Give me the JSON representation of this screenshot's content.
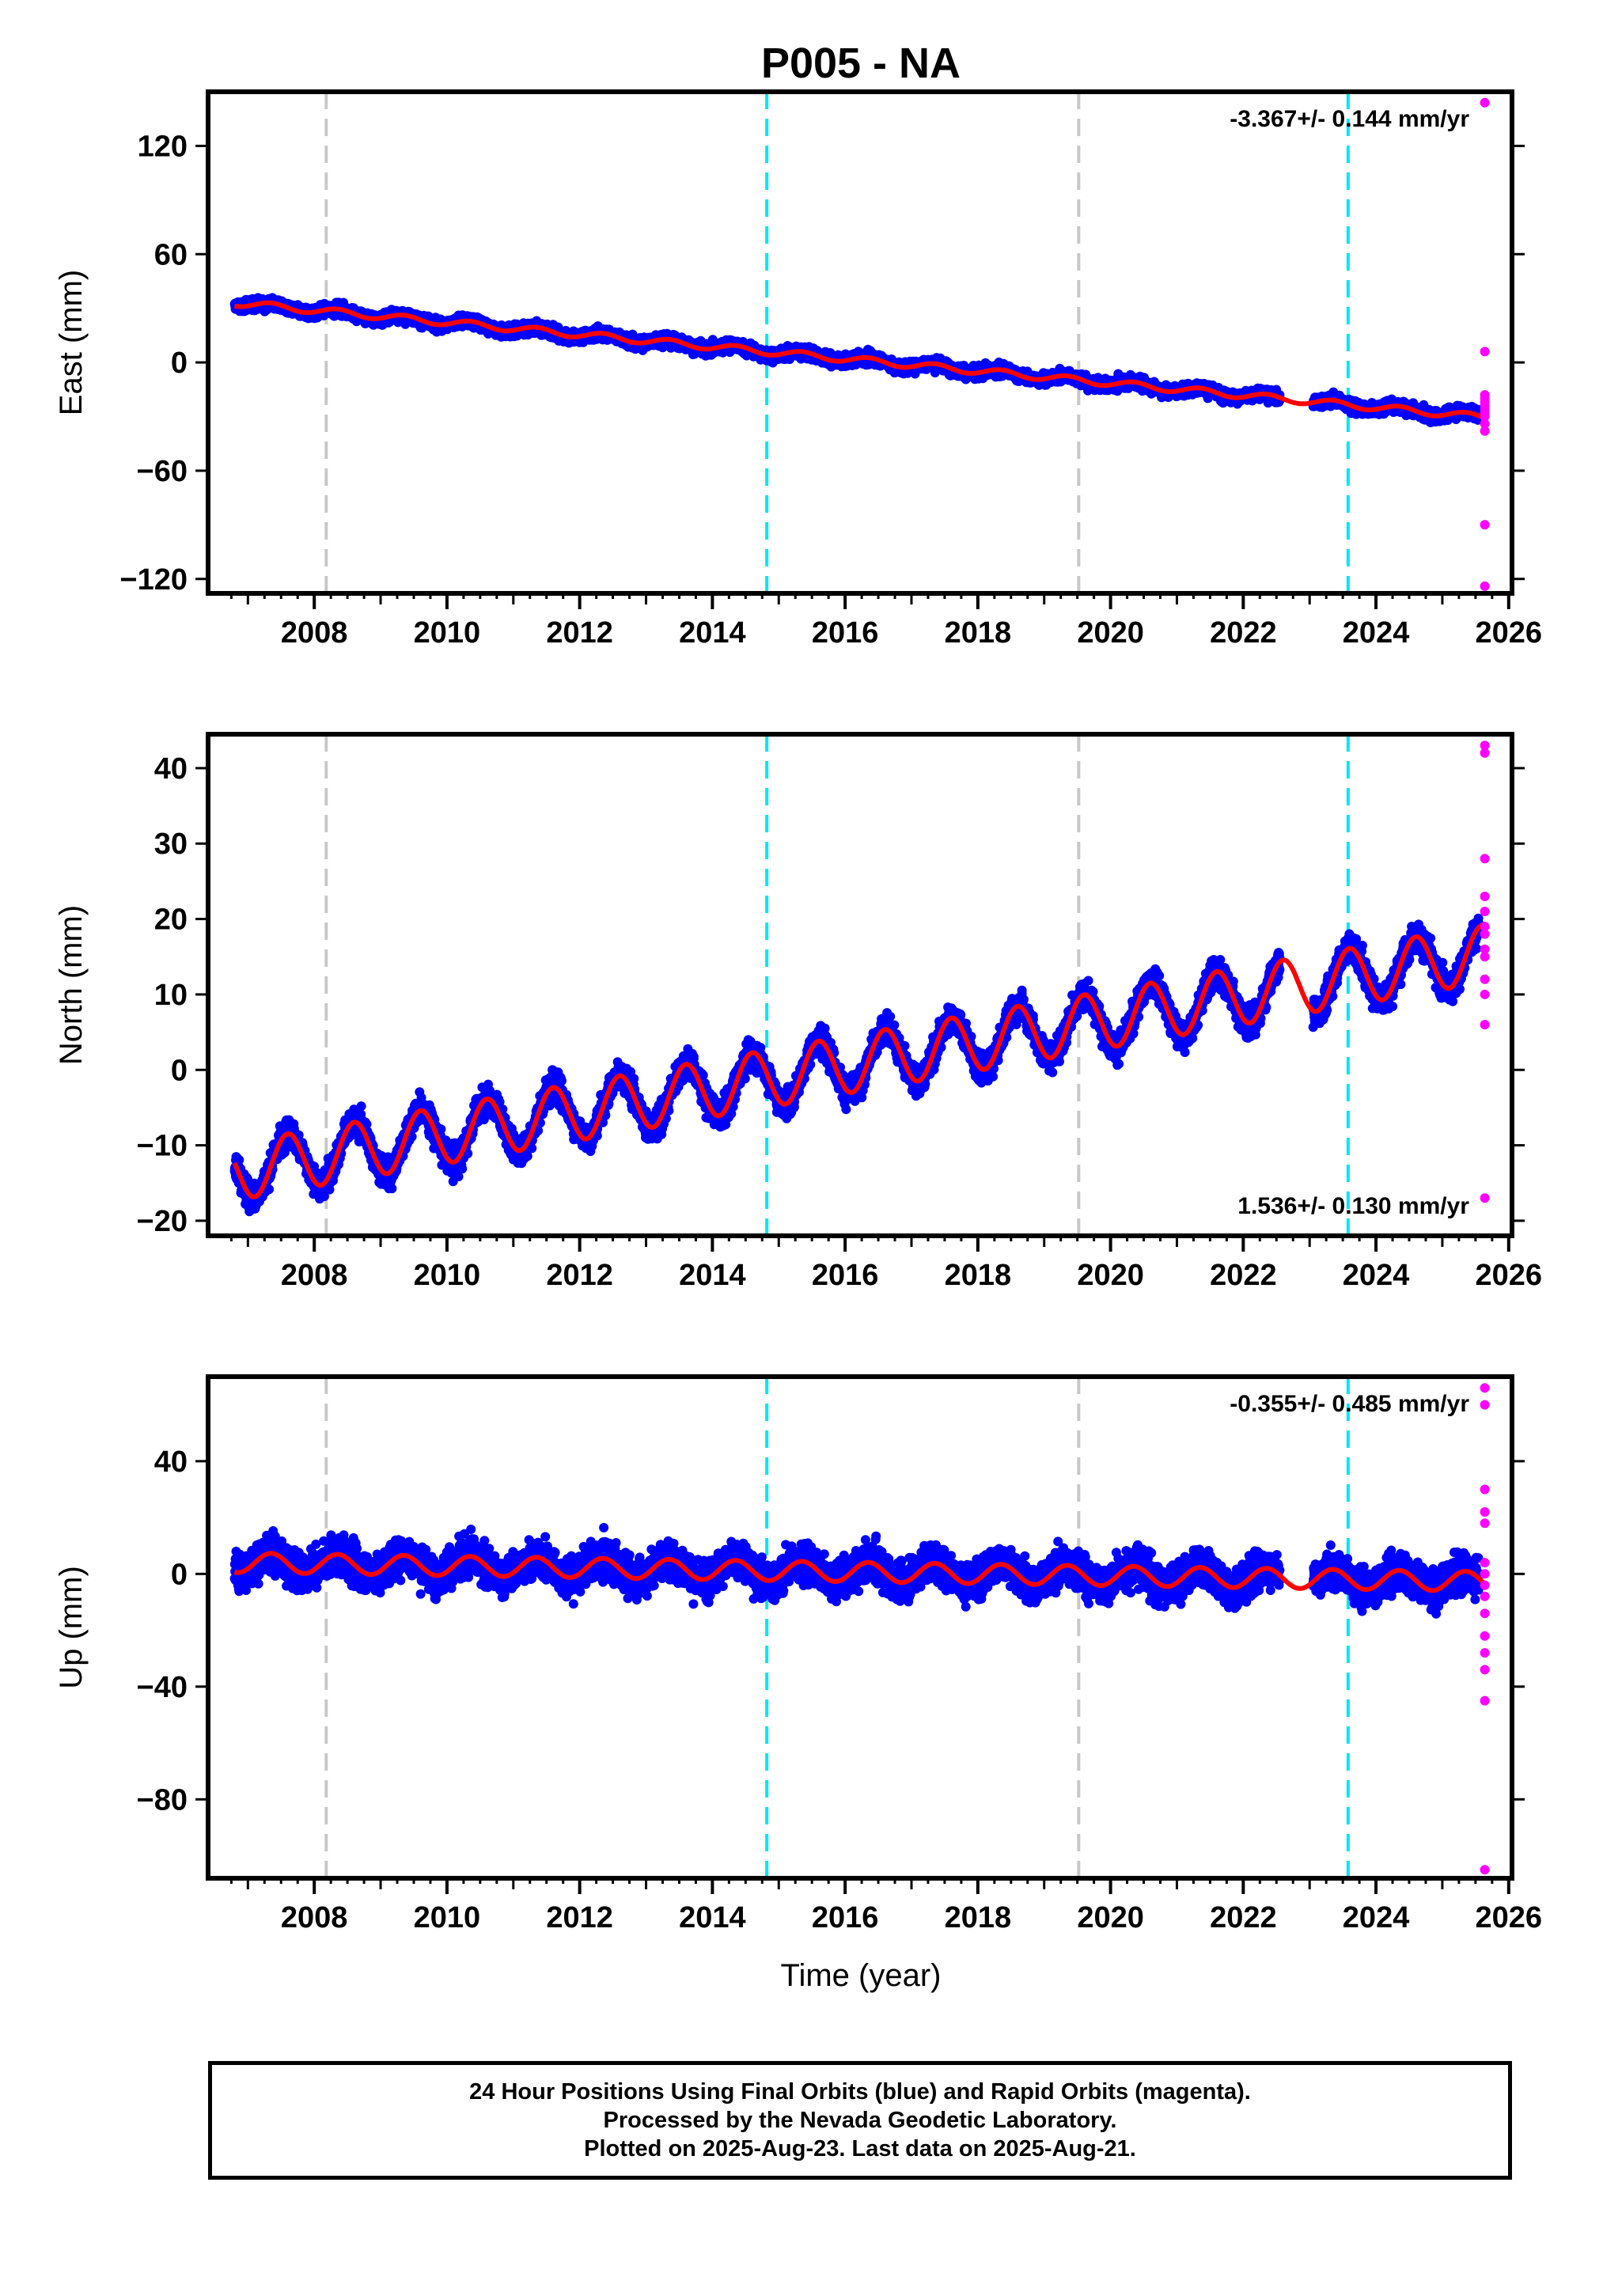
{
  "colors": {
    "final": "#0000ff",
    "rapid": "#ff00ff",
    "model": "#ff0000",
    "gray_line": "#c8c8c8",
    "cyan_line": "#00e5ee"
  },
  "footer": {
    "line1": "24 Hour Positions Using Final Orbits (blue) and Rapid Orbits (magenta).",
    "line2": "Processed by the Nevada Geodetic Laboratory.",
    "line3": "Plotted on 2025-Aug-23. Last data on 2025-Aug-21."
  },
  "chart_data": {
    "type": "scatter",
    "title": "P005 - NA",
    "xlabel": "Time (year)",
    "xlim": [
      2006.4,
      2026.05
    ],
    "x_ticks": [
      2008,
      2010,
      2012,
      2014,
      2016,
      2018,
      2020,
      2022,
      2024,
      2026
    ],
    "data_start": 2006.8,
    "final_end": 2025.55,
    "gap": [
      2022.55,
      2023.05
    ],
    "last_data": 2025.64,
    "gray_lines": [
      2008.18,
      2019.52
    ],
    "cyan_lines": [
      2014.82,
      2023.58
    ],
    "panels": [
      {
        "ylabel": "East (mm)",
        "ylim": [
          -128,
          150
        ],
        "yticks": [
          120,
          60,
          0,
          -60,
          -120
        ],
        "rate": "-3.367+/- 0.144 mm/yr",
        "rate_position": "top-right",
        "offset_at_start": 33.0,
        "velocity": -3.367,
        "seasonal_amplitude": 1.8,
        "seasonal_phase": 0.1,
        "scatter": 2.2,
        "rapid_values": [
          144,
          6,
          -18,
          -20,
          -22,
          -24,
          -26,
          -28,
          -30,
          -34,
          -38,
          -90,
          -124
        ]
      },
      {
        "ylabel": "North (mm)",
        "ylim": [
          -22,
          44.5
        ],
        "yticks": [
          40,
          30,
          20,
          10,
          0,
          -10,
          -20
        ],
        "rate": "1.536+/- 0.130 mm/yr",
        "rate_position": "bottom-right",
        "offset_at_start": -13.5,
        "velocity": 1.536,
        "seasonal_amplitude": 3.8,
        "seasonal_phase": 0.35,
        "scatter": 1.3,
        "rapid_values": [
          43,
          42,
          28,
          23,
          21,
          19,
          18,
          16,
          15,
          12,
          10,
          6,
          -17
        ]
      },
      {
        "ylabel": "Up (mm)",
        "ylim": [
          -108,
          70
        ],
        "yticks": [
          40,
          0,
          -40,
          -80
        ],
        "rate": "-0.355+/- 0.485 mm/yr",
        "rate_position": "top-right",
        "offset_at_start": 4.0,
        "velocity": -0.355,
        "seasonal_amplitude": 3.5,
        "seasonal_phase": 0.1,
        "scatter": 4.5,
        "rapid_values": [
          66,
          60,
          30,
          22,
          18,
          4,
          0,
          -4,
          -8,
          -14,
          -22,
          -28,
          -34,
          -45,
          -105
        ]
      }
    ]
  }
}
